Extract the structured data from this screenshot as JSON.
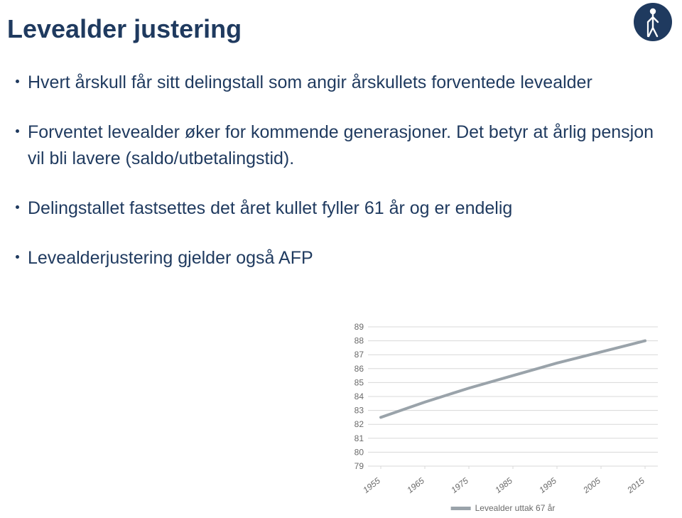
{
  "title": "Levealder justering",
  "bullets": [
    "Hvert årskull får sitt delingstall som angir årskullets forventede levealder",
    "Forventet levealder øker for kommende generasjoner. Det betyr at årlig pensjon vil bli lavere (saldo/utbetalingstid).",
    "Delingstallet fastsettes det året kullet fyller 61 år og er endelig",
    "Levealderjustering gjelder også AFP"
  ],
  "chart": {
    "type": "line",
    "categories": [
      "1955",
      "1965",
      "1975",
      "1985",
      "1995",
      "2005",
      "2015"
    ],
    "values": [
      82.5,
      83.6,
      84.6,
      85.5,
      86.4,
      87.2,
      88.0
    ],
    "y_ticks": [
      79,
      80,
      81,
      82,
      83,
      84,
      85,
      86,
      87,
      88,
      89
    ],
    "ylim": [
      79,
      89
    ],
    "line_color": "#9aa3aa",
    "line_width": 4,
    "grid_color": "#d8d8d8",
    "axis_color": "#d8d8d8",
    "background_color": "#ffffff",
    "tick_fontsize": 12,
    "tick_color": "#6a6a6a",
    "legend_label": "Levealder uttak 67 år",
    "legend_swatch_color": "#9aa3aa"
  },
  "colors": {
    "title": "#1f3a5f",
    "body": "#1f3a5f",
    "logo_bg": "#1f3a5f",
    "logo_fg": "#ffffff"
  }
}
